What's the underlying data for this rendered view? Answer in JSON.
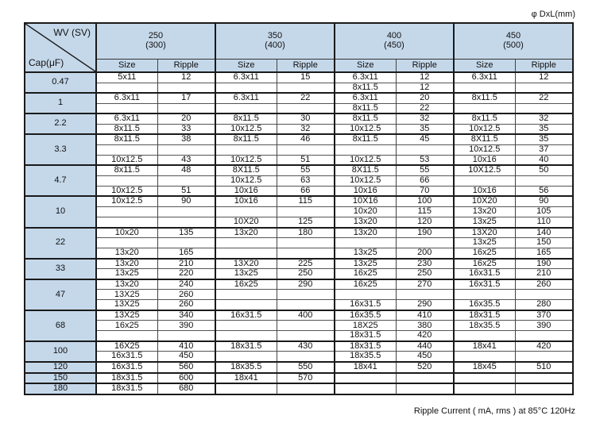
{
  "page": {
    "top_right_label": "φ DxL(mm)",
    "footer_note": "Ripple Current ( mA, rms ) at 85°C 120Hz"
  },
  "colors": {
    "header_fill": "#c5d8ea",
    "border_dark": "#1a1a1a",
    "border_thin": "#555555",
    "background": "#ffffff"
  },
  "table": {
    "corner": {
      "top": "WV (SV)",
      "bottom": "Cap(μF)"
    },
    "voltage_columns": [
      {
        "wv": "250",
        "sv": "(300)"
      },
      {
        "wv": "350",
        "sv": "(400)"
      },
      {
        "wv": "400",
        "sv": "(450)"
      },
      {
        "wv": "450",
        "sv": "(500)"
      }
    ],
    "sub_headers": [
      "Size",
      "Ripple"
    ],
    "groups": [
      {
        "cap": "0.47",
        "rows": [
          [
            "5x11",
            "12",
            "6.3x11",
            "15",
            "6.3x11",
            "12",
            "6.3x11",
            "12"
          ],
          [
            "",
            "",
            "",
            "",
            "8x11.5",
            "12",
            "",
            ""
          ]
        ]
      },
      {
        "cap": "1",
        "rows": [
          [
            "6.3x11",
            "17",
            "6.3x11",
            "22",
            "6.3x11",
            "20",
            "8x11.5",
            "22"
          ],
          [
            "",
            "",
            "",
            "",
            "8x11.5",
            "22",
            "",
            ""
          ]
        ]
      },
      {
        "cap": "2.2",
        "rows": [
          [
            "6.3x11",
            "20",
            "8x11.5",
            "30",
            "8x11.5",
            "32",
            "8x11.5",
            "32"
          ],
          [
            "8x11.5",
            "33",
            "10x12.5",
            "32",
            "10x12.5",
            "35",
            "10x12.5",
            "35"
          ]
        ]
      },
      {
        "cap": "3.3",
        "rows": [
          [
            "8x11.5",
            "38",
            "8x11.5",
            "46",
            "8x11.5",
            "45",
            "8X11.5",
            "35"
          ],
          [
            "",
            "",
            "",
            "",
            "",
            "",
            "10x12.5",
            "37"
          ],
          [
            "10x12.5",
            "43",
            "10x12.5",
            "51",
            "10x12.5",
            "53",
            "10x16",
            "40"
          ]
        ]
      },
      {
        "cap": "4.7",
        "rows": [
          [
            "8x11.5",
            "48",
            "8X11.5",
            "55",
            "8X11.5",
            "55",
            "10X12.5",
            "50"
          ],
          [
            "",
            "",
            "10x12.5",
            "63",
            "10x12.5",
            "66",
            "",
            ""
          ],
          [
            "10x12.5",
            "51",
            "10x16",
            "66",
            "10x16",
            "70",
            "10x16",
            "56"
          ]
        ]
      },
      {
        "cap": "10",
        "rows": [
          [
            "10x12.5",
            "90",
            "10x16",
            "115",
            "10X16",
            "100",
            "10X20",
            "90"
          ],
          [
            "",
            "",
            "",
            "",
            "10x20",
            "115",
            "13x20",
            "105"
          ],
          [
            "",
            "",
            "10X20",
            "125",
            "13x20",
            "120",
            "13x25",
            "110"
          ]
        ]
      },
      {
        "cap": "22",
        "rows": [
          [
            "10x20",
            "135",
            "13x20",
            "180",
            "13x20",
            "190",
            "13X20",
            "140"
          ],
          [
            "",
            "",
            "",
            "",
            "",
            "",
            "13x25",
            "150"
          ],
          [
            "13x20",
            "165",
            "",
            "",
            "13x25",
            "200",
            "16x25",
            "165"
          ]
        ]
      },
      {
        "cap": "33",
        "rows": [
          [
            "13x20",
            "210",
            "13X20",
            "225",
            "13x25",
            "230",
            "16x25",
            "190"
          ],
          [
            "13x25",
            "220",
            "13x25",
            "250",
            "16x25",
            "250",
            "16x31.5",
            "210"
          ]
        ]
      },
      {
        "cap": "47",
        "rows": [
          [
            "13x20",
            "240",
            "16x25",
            "290",
            "16x25",
            "270",
            "16x31.5",
            "260"
          ],
          [
            "13X25",
            "260",
            "",
            "",
            "",
            "",
            "",
            ""
          ],
          [
            "13X25",
            "260",
            "",
            "",
            "16x31.5",
            "290",
            "16x35.5",
            "280"
          ]
        ]
      },
      {
        "cap": "68",
        "rows": [
          [
            "13X25",
            "340",
            "16x31.5",
            "400",
            "16x35.5",
            "410",
            "18x31.5",
            "370"
          ],
          [
            "16x25",
            "390",
            "",
            "",
            "18X25",
            "380",
            "18x35.5",
            "390"
          ],
          [
            "",
            "",
            "",
            "",
            "18x31.5",
            "420",
            "",
            ""
          ]
        ]
      },
      {
        "cap": "100",
        "rows": [
          [
            "16X25",
            "410",
            "18x31.5",
            "430",
            "18x31.5",
            "440",
            "18x41",
            "420"
          ],
          [
            "16x31.5",
            "450",
            "",
            "",
            "18x35.5",
            "450",
            "",
            ""
          ]
        ]
      },
      {
        "cap": "120",
        "rows": [
          [
            "16x31.5",
            "560",
            "18x35.5",
            "550",
            "18x41",
            "520",
            "18x45",
            "510"
          ]
        ]
      },
      {
        "cap": "150",
        "rows": [
          [
            "18x31.5",
            "600",
            "18x41",
            "570",
            "",
            "",
            "",
            ""
          ]
        ]
      },
      {
        "cap": "180",
        "rows": [
          [
            "18x31.5",
            "680",
            "",
            "",
            "",
            "",
            "",
            ""
          ]
        ]
      }
    ]
  }
}
